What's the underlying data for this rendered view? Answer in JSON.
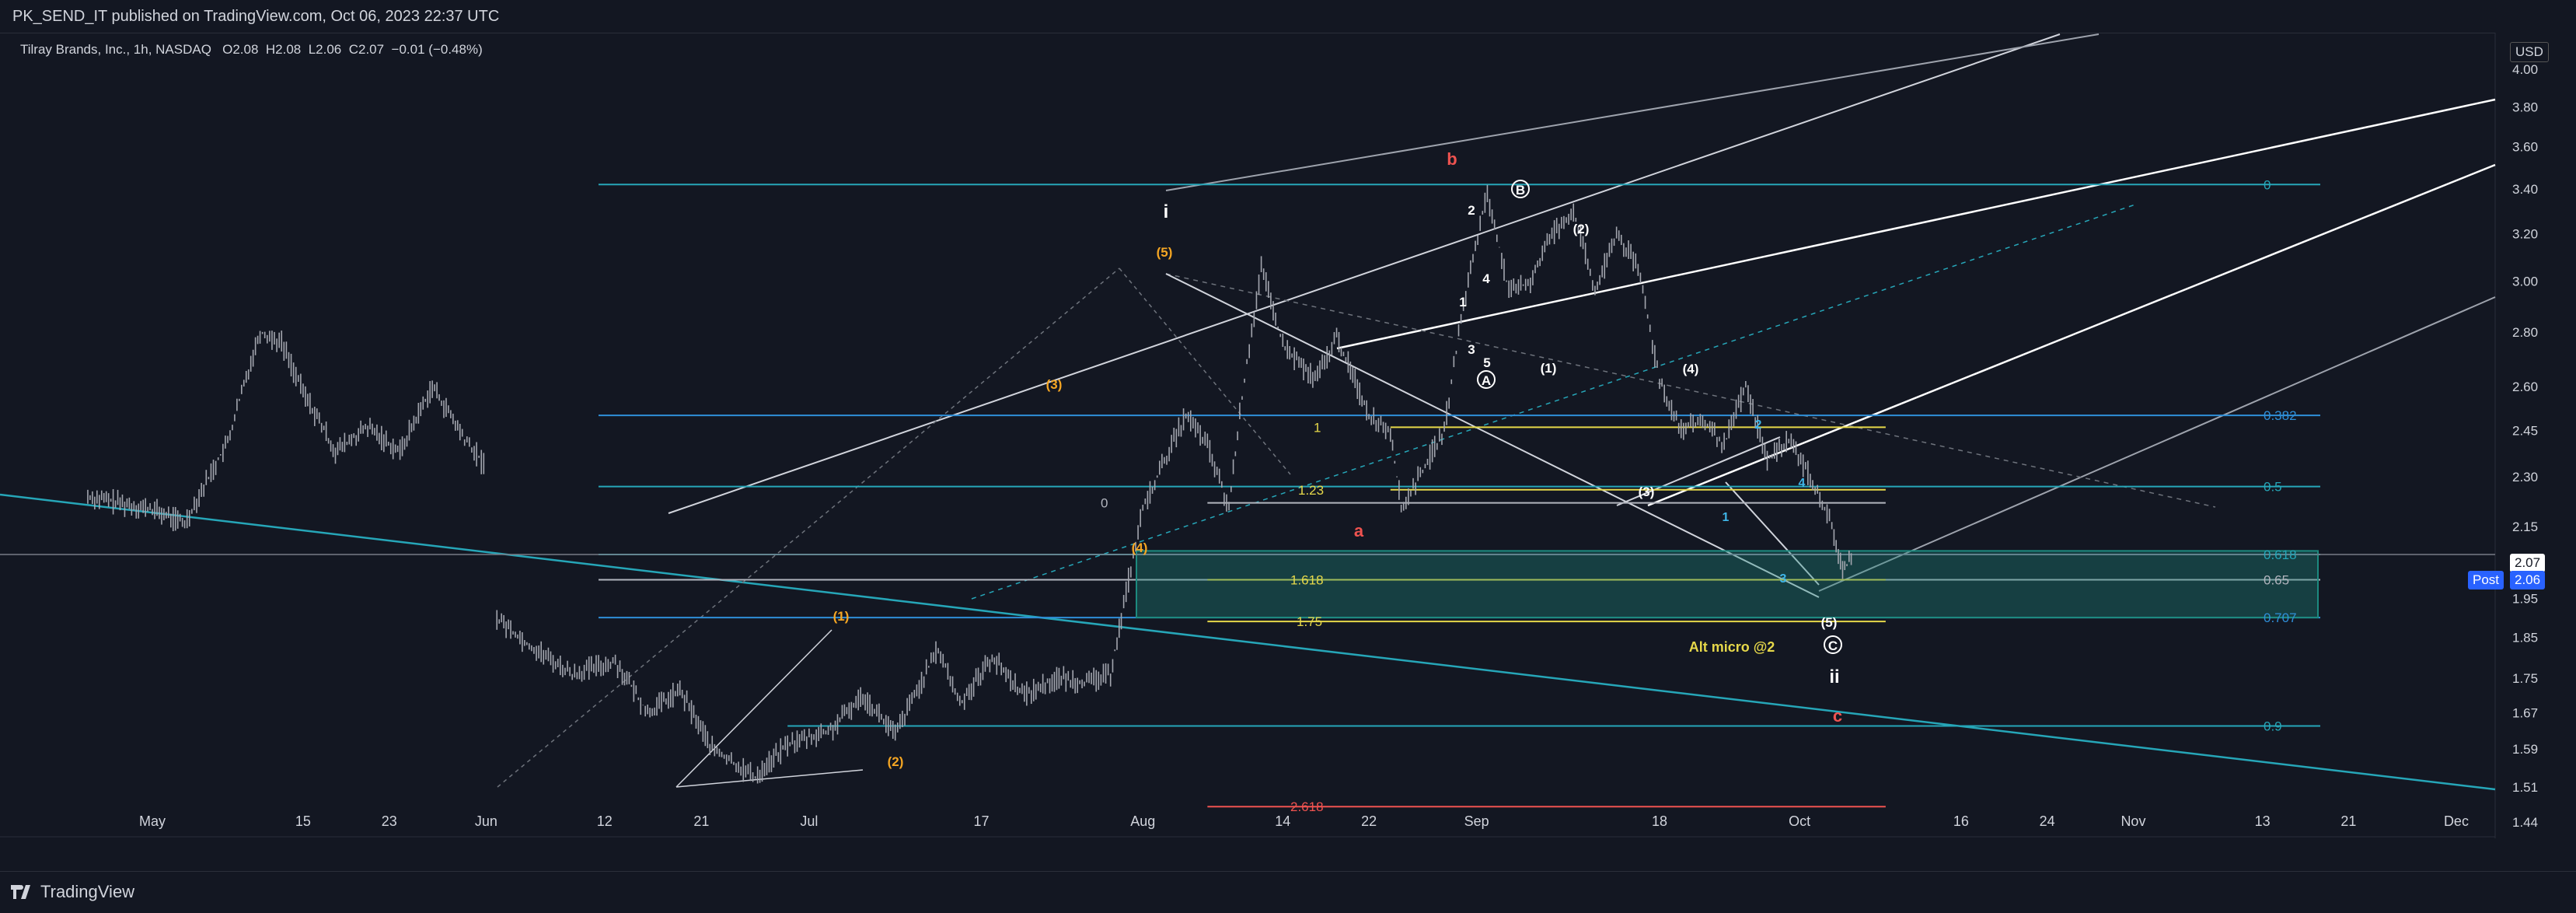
{
  "header": {
    "publisher_line": "PK_SEND_IT published on TradingView.com, Oct 06, 2023 22:37 UTC"
  },
  "legend": {
    "symbol": "Tilray Brands, Inc., 1h, NASDAQ",
    "open": "O2.08",
    "high": "H2.08",
    "low": "L2.06",
    "close": "C2.07",
    "change": "−0.01 (−0.48%)"
  },
  "footer": {
    "brand": "TradingView"
  },
  "price_axis": {
    "currency": "USD",
    "last_price": "2.07",
    "post_label": "Post",
    "post_price": "2.06"
  },
  "colors": {
    "background": "#131722",
    "candles": "#a3a6af",
    "teal": "#26a6b8",
    "zone": "#1d8a7f",
    "yellow": "#e6d84a",
    "orange": "#f5a623",
    "red": "#ef5350",
    "white": "#ffffff"
  },
  "chart_data": {
    "type": "candlestick",
    "symbol": "Tilray Brands, Inc., 1h, NASDAQ",
    "interval": "1h",
    "y_scale": "log",
    "ylim": [
      1.42,
      4.15
    ],
    "y_ticks": [
      "4.00",
      "3.80",
      "3.60",
      "3.40",
      "3.20",
      "3.00",
      "2.80",
      "2.60",
      "2.45",
      "2.30",
      "2.15",
      "2.00",
      "1.95",
      "1.85",
      "1.75",
      "1.67",
      "1.59",
      "1.51",
      "1.44"
    ],
    "x_ticks": [
      "May",
      "15",
      "23",
      "Jun",
      "12",
      "21",
      "Jul",
      "17",
      "Aug",
      "14",
      "22",
      "Sep",
      "18",
      "Oct",
      "16",
      "24",
      "Nov",
      "13",
      "21",
      "Dec"
    ],
    "price_path": [
      {
        "t": "Apr 25",
        "p": 2.24
      },
      {
        "t": "May 01",
        "p": 2.2
      },
      {
        "t": "May 04",
        "p": 2.16
      },
      {
        "t": "May 08",
        "p": 2.41
      },
      {
        "t": "May 11",
        "p": 2.8
      },
      {
        "t": "May 13",
        "p": 2.76
      },
      {
        "t": "May 15",
        "p": 2.58
      },
      {
        "t": "May 18",
        "p": 2.38
      },
      {
        "t": "May 21",
        "p": 2.46
      },
      {
        "t": "May 24",
        "p": 2.38
      },
      {
        "t": "May 27",
        "p": 2.6
      },
      {
        "t": "May 30",
        "p": 2.42
      },
      {
        "t": "Jun 01",
        "p": 2.33
      },
      {
        "t": "Jun 02",
        "p": 1.9
      },
      {
        "t": "Jun 05",
        "p": 1.83
      },
      {
        "t": "Jun 09",
        "p": 1.76
      },
      {
        "t": "Jun 13",
        "p": 1.79
      },
      {
        "t": "Jun 16",
        "p": 1.67
      },
      {
        "t": "Jun 19",
        "p": 1.72
      },
      {
        "t": "Jun 22",
        "p": 1.59
      },
      {
        "t": "Jun 26",
        "p": 1.53
      },
      {
        "t": "Jun 29",
        "p": 1.6
      },
      {
        "t": "Jul 03",
        "p": 1.63
      },
      {
        "t": "Jul 06",
        "p": 1.71
      },
      {
        "t": "Jul 09",
        "p": 1.62
      },
      {
        "t": "Jul 13",
        "p": 1.82
      },
      {
        "t": "Jul 15",
        "p": 1.69
      },
      {
        "t": "Jul 18",
        "p": 1.8
      },
      {
        "t": "Jul 21",
        "p": 1.71
      },
      {
        "t": "Jul 24",
        "p": 1.75
      },
      {
        "t": "Jul 27",
        "p": 1.74
      },
      {
        "t": "Jul 29",
        "p": 1.76
      },
      {
        "t": "Jul 30",
        "p": 1.9
      },
      {
        "t": "Aug 01",
        "p": 2.2
      },
      {
        "t": "Aug 03",
        "p": 2.35
      },
      {
        "t": "Aug 05",
        "p": 2.5
      },
      {
        "t": "Aug 07",
        "p": 2.4
      },
      {
        "t": "Aug 09",
        "p": 2.2
      },
      {
        "t": "Aug 10",
        "p": 2.5
      },
      {
        "t": "Aug 12",
        "p": 3.05
      },
      {
        "t": "Aug 14",
        "p": 2.75
      },
      {
        "t": "Aug 17",
        "p": 2.62
      },
      {
        "t": "Aug 19",
        "p": 2.78
      },
      {
        "t": "Aug 22",
        "p": 2.5
      },
      {
        "t": "Aug 24",
        "p": 2.45
      },
      {
        "t": "Aug 25",
        "p": 2.2
      },
      {
        "t": "Aug 27",
        "p": 2.32
      },
      {
        "t": "Aug 29",
        "p": 2.45
      },
      {
        "t": "Aug 31",
        "p": 2.95
      },
      {
        "t": "Sep 02",
        "p": 3.38
      },
      {
        "t": "Sep 04",
        "p": 2.95
      },
      {
        "t": "Sep 06",
        "p": 3.0
      },
      {
        "t": "Sep 08",
        "p": 3.2
      },
      {
        "t": "Sep 10",
        "p": 3.3
      },
      {
        "t": "Sep 12",
        "p": 2.95
      },
      {
        "t": "Sep 14",
        "p": 3.2
      },
      {
        "t": "Sep 16",
        "p": 3.05
      },
      {
        "t": "Sep 18",
        "p": 2.62
      },
      {
        "t": "Sep 20",
        "p": 2.45
      },
      {
        "t": "Sep 22",
        "p": 2.48
      },
      {
        "t": "Sep 24",
        "p": 2.4
      },
      {
        "t": "Sep 26",
        "p": 2.6
      },
      {
        "t": "Sep 28",
        "p": 2.35
      },
      {
        "t": "Sep 30",
        "p": 2.42
      },
      {
        "t": "Oct 02",
        "p": 2.3
      },
      {
        "t": "Oct 04",
        "p": 2.15
      },
      {
        "t": "Oct 05",
        "p": 2.02
      },
      {
        "t": "Oct 06",
        "p": 2.07
      }
    ],
    "horizontal_levels": [
      {
        "label": "0",
        "price": 3.42,
        "color": "teal",
        "start": "Jun 02",
        "end": "Oct 29"
      },
      {
        "label": "0.382",
        "price": 2.5,
        "color": "blue",
        "start": "Jun 02",
        "end": "Oct 29"
      },
      {
        "label": "0.5",
        "price": 2.27,
        "color": "teal",
        "start": "Jun 02",
        "end": "Oct 29"
      },
      {
        "label": "0.618",
        "price": 2.07,
        "color": "teal",
        "start": "Jun 02",
        "end": "Oct 29"
      },
      {
        "label": "0.65",
        "price": 2.0,
        "color": "white",
        "start": "Jun 02",
        "end": "Oct 29"
      },
      {
        "label": "0.707",
        "price": 1.9,
        "color": "blue",
        "start": "Jun 02",
        "end": "Oct 29"
      },
      {
        "label": "0.9",
        "price": 1.64,
        "color": "teal",
        "start": "Jun 29",
        "end": "Oct 29"
      },
      {
        "label": "1",
        "price": 2.46,
        "color": "yellow",
        "start": "Aug 24",
        "end": "Oct 09"
      },
      {
        "label": "1.23",
        "price": 2.26,
        "color": "yellow",
        "start": "Aug 24",
        "end": "Oct 09"
      },
      {
        "label": "0",
        "price": 2.22,
        "color": "white",
        "start": "Aug 07",
        "end": "Oct 09"
      },
      {
        "label": "1.618",
        "price": 2.0,
        "color": "yellow",
        "start": "Aug 07",
        "end": "Oct 09"
      },
      {
        "label": "1.75",
        "price": 1.89,
        "color": "yellow",
        "start": "Aug 07",
        "end": "Oct 09"
      },
      {
        "label": "2.618",
        "price": 1.47,
        "color": "red",
        "start": "Aug 07",
        "end": "Oct 09"
      }
    ],
    "level_tags": [
      "0",
      "0.382",
      "0.5",
      "0.618",
      "0.65",
      "0.707",
      "0.9"
    ],
    "inner_level_tags": [
      "1",
      "1.23",
      "0",
      "1.618",
      "1.75",
      "2.618"
    ],
    "zone": {
      "price_top": 2.08,
      "price_bottom": 1.9,
      "start": "Aug 07",
      "end": "Oct 29"
    },
    "wave_labels": {
      "red": [
        "b",
        "a",
        "c"
      ],
      "orange": [
        "(5)",
        "(3)",
        "(4)",
        "(1)",
        "(2)"
      ],
      "white": [
        "i",
        "2",
        "1",
        "4",
        "3",
        "5",
        "(1)",
        "(2)",
        "(4)",
        "(3)",
        "(5)",
        "ii"
      ],
      "circled": [
        "B",
        "A",
        "C"
      ],
      "blue": [
        "2",
        "4",
        "1",
        "3"
      ]
    },
    "note": "Alt micro @2"
  }
}
